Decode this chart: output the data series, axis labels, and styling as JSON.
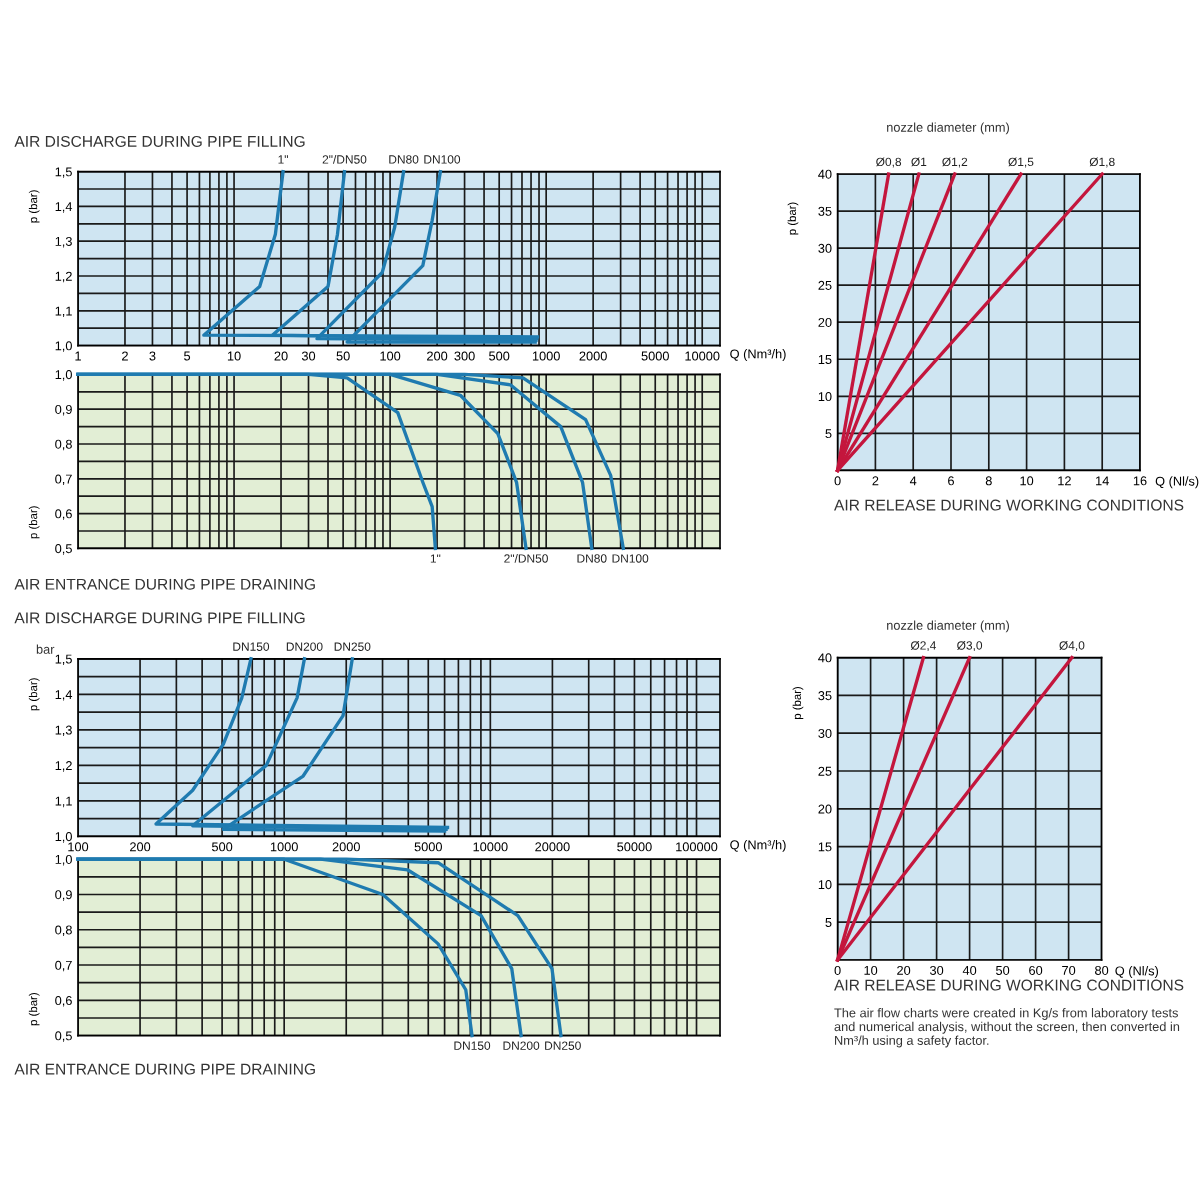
{
  "chart_data": [
    {
      "type": "line",
      "title": "AIR DISCHARGE DURING PIPE FILLING",
      "xlabel": "Q (Nm³/h)",
      "ylabel": "p (bar)",
      "log": "x",
      "grid": true,
      "xlim": [
        1,
        13000
      ],
      "ylim": [
        1.0,
        1.5
      ],
      "xticks": [
        1,
        2,
        3,
        {
          "value": 4,
          "label": null
        },
        5,
        {
          "value": 6,
          "label": null
        },
        {
          "value": 7,
          "label": null
        },
        {
          "value": 8,
          "label": null
        },
        {
          "value": 9,
          "label": null
        },
        10,
        20,
        30,
        {
          "value": 40,
          "label": null
        },
        50,
        {
          "value": 60,
          "label": null
        },
        {
          "value": 70,
          "label": null
        },
        {
          "value": 80,
          "label": null
        },
        {
          "value": 90,
          "label": null
        },
        100,
        200,
        300,
        {
          "value": 400,
          "label": null
        },
        500,
        {
          "value": 600,
          "label": null
        },
        {
          "value": 700,
          "label": null
        },
        {
          "value": 800,
          "label": null
        },
        {
          "value": 900,
          "label": null
        },
        1000,
        2000,
        {
          "value": 3000,
          "label": null
        },
        {
          "value": 4000,
          "label": null
        },
        5000,
        {
          "value": 6000,
          "label": null
        },
        {
          "value": 7000,
          "label": null
        },
        {
          "value": 8000,
          "label": null
        },
        {
          "value": 9000,
          "label": null
        },
        10000
      ],
      "yticks": [
        {
          "value": 1.0,
          "label": "1,0"
        },
        {
          "value": 1.05,
          "label": null
        },
        {
          "value": 1.1,
          "label": "1,1"
        },
        {
          "value": 1.15,
          "label": null
        },
        {
          "value": 1.2,
          "label": "1,2"
        },
        {
          "value": 1.25,
          "label": null
        },
        {
          "value": 1.3,
          "label": "1,3"
        },
        {
          "value": 1.35,
          "label": null
        },
        {
          "value": 1.4,
          "label": "1,4"
        },
        {
          "value": 1.45,
          "label": null
        },
        {
          "value": 1.5,
          "label": "1,5"
        }
      ],
      "series": [
        {
          "name": "1\"",
          "color": "#1f7bb0",
          "x": [
            880,
            6.4,
            14.6,
            18.4,
            20.6
          ],
          "values": [
            1.025,
            1.03,
            1.17,
            1.32,
            1.5
          ]
        },
        {
          "name": "2\"/DN50",
          "color": "#1f7bb0",
          "x": [
            870,
            17.6,
            40,
            46,
            51
          ],
          "values": [
            1.02,
            1.03,
            1.17,
            1.32,
            1.5
          ]
        },
        {
          "name": "DN80",
          "color": "#1f7bb0",
          "x": [
            860,
            34,
            89,
            107,
            122
          ],
          "values": [
            1.015,
            1.02,
            1.21,
            1.34,
            1.5
          ]
        },
        {
          "name": "DN100",
          "color": "#1f7bb0",
          "x": [
            850,
            53,
            162,
            186,
            210
          ],
          "values": [
            1.01,
            1.01,
            1.23,
            1.36,
            1.5
          ]
        }
      ]
    },
    {
      "type": "line",
      "title": "AIR ENTRANCE DURING PIPE DRAINING",
      "ylabel": "p (bar)",
      "log": "x",
      "grid": true,
      "tick_labels": "y",
      "xlim": [
        1,
        13000
      ],
      "ylim": [
        0.5,
        1.0
      ],
      "xticks": [
        1,
        2,
        3,
        4,
        5,
        6,
        7,
        8,
        9,
        10,
        20,
        30,
        40,
        50,
        60,
        70,
        80,
        90,
        100,
        200,
        300,
        400,
        500,
        600,
        700,
        800,
        900,
        1000,
        2000,
        3000,
        4000,
        5000,
        6000,
        7000,
        8000,
        9000,
        10000
      ],
      "yticks": [
        {
          "value": 0.5,
          "label": "0,5"
        },
        {
          "value": 0.55,
          "label": null
        },
        {
          "value": 0.6,
          "label": "0,6"
        },
        {
          "value": 0.65,
          "label": null
        },
        {
          "value": 0.7,
          "label": "0,7"
        },
        {
          "value": 0.75,
          "label": null
        },
        {
          "value": 0.8,
          "label": "0,8"
        },
        {
          "value": 0.85,
          "label": null
        },
        {
          "value": 0.9,
          "label": "0,9"
        },
        {
          "value": 0.95,
          "label": null
        },
        {
          "value": 1.0,
          "label": "1,0"
        }
      ],
      "series": [
        {
          "name": "1\"",
          "color": "#1f7bb0",
          "x": [
            1,
            30,
            53,
            112,
            162,
            186,
            195
          ],
          "values": [
            1.0,
            1.0,
            0.99,
            0.89,
            0.69,
            0.62,
            0.5
          ]
        },
        {
          "name": "2\"/DN50",
          "color": "#1f7bb0",
          "x": [
            1,
            100,
            282,
            490,
            646,
            743
          ],
          "values": [
            1.0,
            1.0,
            0.94,
            0.83,
            0.69,
            0.5
          ]
        },
        {
          "name": "DN80",
          "color": "#1f7bb0",
          "x": [
            1,
            200,
            590,
            1240,
            1710,
            1960
          ],
          "values": [
            1.0,
            1.0,
            0.97,
            0.85,
            0.69,
            0.5
          ]
        },
        {
          "name": "DN100",
          "color": "#1f7bb0",
          "x": [
            1,
            300,
            710,
            1790,
            2590,
            3120
          ],
          "values": [
            1.0,
            1.0,
            0.99,
            0.87,
            0.71,
            0.5
          ]
        }
      ]
    },
    {
      "type": "line",
      "title": "AIR RELEASE DURING WORKING CONDITIONS",
      "xlabel": "Q (Nl/s)",
      "ylabel": "p (bar)",
      "grid": true,
      "annotations": [
        "nozzle diameter (mm)"
      ],
      "xlim": [
        0,
        16
      ],
      "ylim": [
        0,
        40
      ],
      "xticks": [
        0,
        2,
        4,
        6,
        8,
        10,
        12,
        14,
        16
      ],
      "yticks": [
        {
          "value": 0,
          "label": null
        },
        5,
        10,
        15,
        20,
        25,
        30,
        35,
        40
      ],
      "series": [
        {
          "name": "Ø0,8",
          "color": "#c4163d",
          "x": [
            0,
            2.7
          ],
          "values": [
            0,
            40
          ]
        },
        {
          "name": "Ø1",
          "color": "#c4163d",
          "x": [
            0,
            4.3
          ],
          "values": [
            0,
            40
          ]
        },
        {
          "name": "Ø1,2",
          "color": "#c4163d",
          "x": [
            0,
            6.2
          ],
          "values": [
            0,
            40
          ]
        },
        {
          "name": "Ø1,5",
          "color": "#c4163d",
          "x": [
            0,
            9.7
          ],
          "values": [
            0,
            40
          ]
        },
        {
          "name": "Ø1,8",
          "color": "#c4163d",
          "x": [
            0,
            14.0
          ],
          "values": [
            0,
            40
          ]
        }
      ]
    },
    {
      "type": "line",
      "title": "AIR DISCHARGE DURING PIPE FILLING",
      "xlabel": "Q (Nm³/h)",
      "ylabel": "p (bar)",
      "log": "x",
      "grid": true,
      "annotations": [
        "bar"
      ],
      "xlim": [
        100,
        130000
      ],
      "ylim": [
        1.0,
        1.5
      ],
      "xticks": [
        100,
        200,
        {
          "value": 300,
          "label": null
        },
        {
          "value": 400,
          "label": null
        },
        500,
        {
          "value": 600,
          "label": null
        },
        {
          "value": 700,
          "label": null
        },
        {
          "value": 800,
          "label": null
        },
        {
          "value": 900,
          "label": null
        },
        1000,
        2000,
        {
          "value": 3000,
          "label": null
        },
        {
          "value": 4000,
          "label": null
        },
        5000,
        {
          "value": 6000,
          "label": null
        },
        {
          "value": 7000,
          "label": null
        },
        {
          "value": 8000,
          "label": null
        },
        {
          "value": 9000,
          "label": null
        },
        10000,
        20000,
        {
          "value": 30000,
          "label": null
        },
        {
          "value": 40000,
          "label": null
        },
        50000,
        {
          "value": 60000,
          "label": null
        },
        {
          "value": 70000,
          "label": null
        },
        {
          "value": 80000,
          "label": null
        },
        {
          "value": 90000,
          "label": null
        },
        100000
      ],
      "yticks": [
        {
          "value": 1.0,
          "label": "1,0"
        },
        {
          "value": 1.05,
          "label": null
        },
        {
          "value": 1.1,
          "label": "1,1"
        },
        {
          "value": 1.15,
          "label": null
        },
        {
          "value": 1.2,
          "label": "1,2"
        },
        {
          "value": 1.25,
          "label": null
        },
        {
          "value": 1.3,
          "label": "1,3"
        },
        {
          "value": 1.35,
          "label": null
        },
        {
          "value": 1.4,
          "label": "1,4"
        },
        {
          "value": 1.45,
          "label": null
        },
        {
          "value": 1.5,
          "label": "1,5"
        }
      ],
      "series": [
        {
          "name": "DN150",
          "color": "#1f7bb0",
          "x": [
            6200,
            239,
            360,
            507,
            623,
            690
          ],
          "values": [
            1.025,
            1.035,
            1.13,
            1.26,
            1.39,
            1.5
          ]
        },
        {
          "name": "DN200",
          "color": "#1f7bb0",
          "x": [
            6100,
            360,
            819,
            1155,
            1254
          ],
          "values": [
            1.02,
            1.03,
            1.2,
            1.39,
            1.5
          ]
        },
        {
          "name": "DN250",
          "color": "#1f7bb0",
          "x": [
            6000,
            507,
            1236,
            1930,
            2140
          ],
          "values": [
            1.015,
            1.02,
            1.17,
            1.34,
            1.5
          ]
        }
      ]
    },
    {
      "type": "line",
      "title": "AIR ENTRANCE DURING PIPE DRAINING",
      "ylabel": "p (bar)",
      "log": "x",
      "grid": true,
      "xlim": [
        100,
        130000
      ],
      "ylim": [
        0.5,
        1.0
      ],
      "tick_labels": "y",
      "xticks": [
        100,
        200,
        300,
        400,
        500,
        600,
        700,
        800,
        900,
        1000,
        2000,
        3000,
        4000,
        5000,
        6000,
        7000,
        8000,
        9000,
        10000,
        20000,
        30000,
        40000,
        50000,
        60000,
        70000,
        80000,
        90000,
        100000
      ],
      "yticks": [
        {
          "value": 0.5,
          "label": "0,5"
        },
        {
          "value": 0.55,
          "label": null
        },
        {
          "value": 0.6,
          "label": "0,6"
        },
        {
          "value": 0.65,
          "label": null
        },
        {
          "value": 0.7,
          "label": "0,7"
        },
        {
          "value": 0.75,
          "label": null
        },
        {
          "value": 0.8,
          "label": "0,8"
        },
        {
          "value": 0.85,
          "label": null
        },
        {
          "value": 0.9,
          "label": "0,9"
        },
        {
          "value": 0.95,
          "label": null
        },
        {
          "value": 1.0,
          "label": "1,0"
        }
      ],
      "series": [
        {
          "name": "DN150",
          "color": "#1f7bb0",
          "x": [
            100,
            1000,
            3010,
            5580,
            7600,
            8150
          ],
          "values": [
            1.0,
            1.0,
            0.9,
            0.76,
            0.63,
            0.5
          ]
        },
        {
          "name": "DN200",
          "color": "#1f7bb0",
          "x": [
            100,
            1500,
            3960,
            9020,
            12700,
            14100
          ],
          "values": [
            1.0,
            1.0,
            0.97,
            0.84,
            0.69,
            0.5
          ]
        },
        {
          "name": "DN250",
          "color": "#1f7bb0",
          "x": [
            100,
            2000,
            5580,
            13600,
            19900,
            22000
          ],
          "values": [
            1.0,
            1.0,
            0.99,
            0.84,
            0.69,
            0.5
          ]
        }
      ]
    },
    {
      "type": "line",
      "title": "AIR RELEASE DURING WORKING CONDITIONS",
      "xlabel": "Q (Nl/s)",
      "ylabel": "p (bar)",
      "grid": true,
      "annotations": [
        "nozzle diameter (mm)",
        "The air flow charts were created in Kg/s from laboratory tests and numerical analysis, without the screen, then converted in Nm³/h using a safety factor."
      ],
      "xlim": [
        0,
        80
      ],
      "ylim": [
        0,
        40
      ],
      "xticks": [
        0,
        10,
        20,
        30,
        40,
        50,
        60,
        70,
        80
      ],
      "yticks": [
        {
          "value": 0,
          "label": null
        },
        5,
        10,
        15,
        20,
        25,
        30,
        35,
        40
      ],
      "series": [
        {
          "name": "Ø2,4",
          "color": "#c4163d",
          "x": [
            0,
            26
          ],
          "values": [
            0,
            40
          ]
        },
        {
          "name": "Ø3,0",
          "color": "#c4163d",
          "x": [
            0,
            40
          ],
          "values": [
            0,
            40
          ]
        },
        {
          "name": "Ø4,0",
          "color": "#c4163d",
          "x": [
            0,
            71
          ],
          "values": [
            0,
            40
          ]
        }
      ]
    }
  ]
}
